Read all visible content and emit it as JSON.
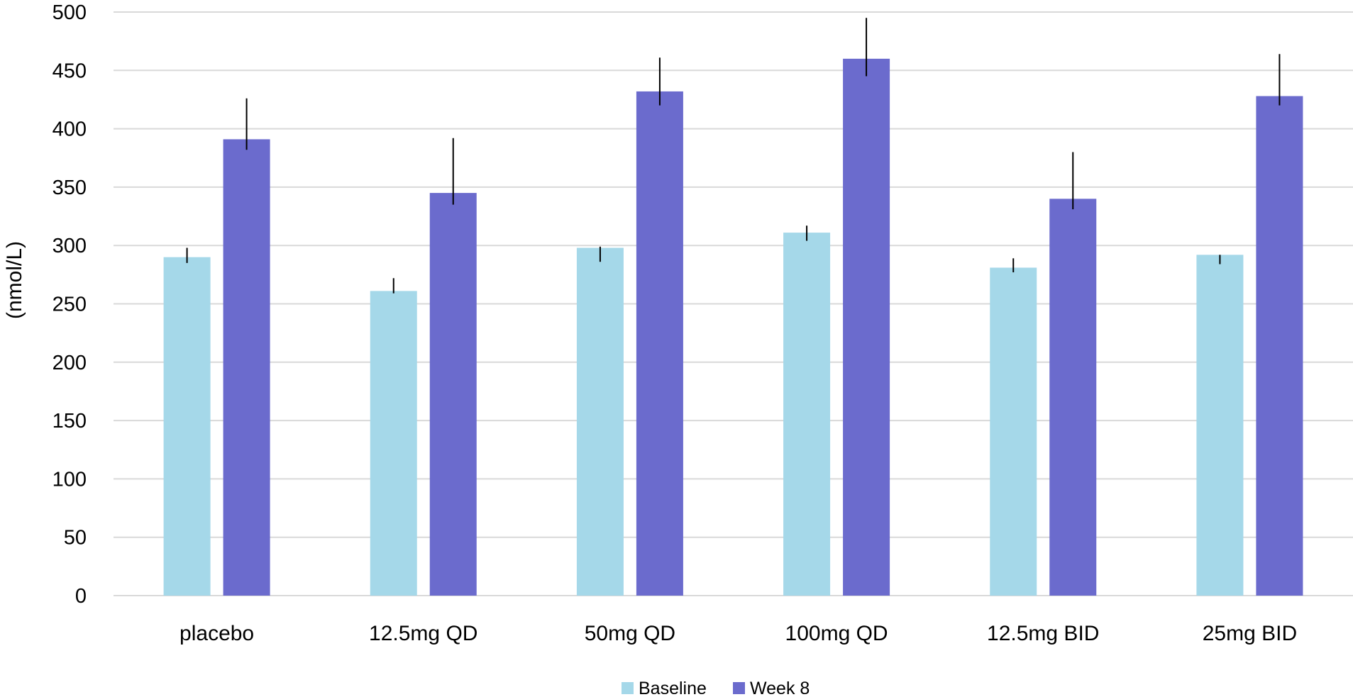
{
  "chart_data": {
    "type": "bar",
    "title": "",
    "xlabel": "",
    "ylabel": "(nmol/L)",
    "ylim": [
      0,
      500
    ],
    "yticks": [
      0,
      50,
      100,
      150,
      200,
      250,
      300,
      350,
      400,
      450,
      500
    ],
    "grid": true,
    "legend_position": "bottom-center",
    "categories": [
      "placebo",
      "12.5mg QD",
      "50mg QD",
      "100mg QD",
      "12.5mg BID",
      "25mg BID"
    ],
    "series": [
      {
        "name": "Baseline",
        "color": "#A5D8E9",
        "values": [
          290,
          261,
          298,
          311,
          281,
          292
        ],
        "error_low": [
          285,
          259,
          286,
          304,
          277,
          284
        ],
        "error_high": [
          298,
          272,
          299,
          317,
          289,
          292
        ]
      },
      {
        "name": "Week 8",
        "color": "#6B6BCD",
        "values": [
          391,
          345,
          432,
          460,
          340,
          428
        ],
        "error_low": [
          382,
          335,
          420,
          445,
          331,
          420
        ],
        "error_high": [
          426,
          392,
          461,
          495,
          380,
          464
        ]
      }
    ],
    "gridline_color": "#D9D9D9",
    "errorbar_color": "#000000"
  }
}
